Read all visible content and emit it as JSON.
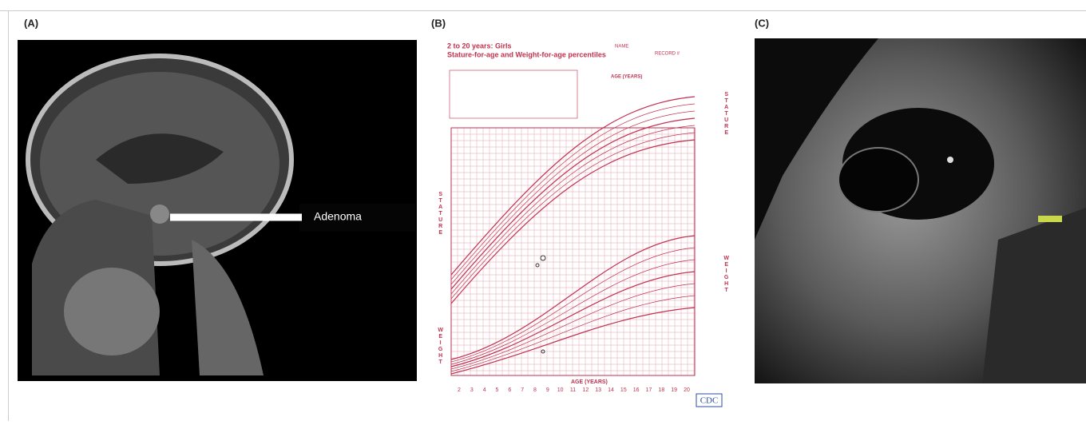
{
  "panels": [
    {
      "label": "(A)",
      "annotation": "Adenoma"
    },
    {
      "label": "(B)",
      "chart": {
        "title": "2 to 20 years: Girls",
        "subtitle": "Stature-for-age and Weight-for-age percentiles",
        "name_label": "NAME",
        "record_label": "RECORD #",
        "age_axis": "AGE (YEARS)",
        "stature": "STATURE",
        "weight": "WEIGHT",
        "ages": [
          "2",
          "3",
          "4",
          "5",
          "6",
          "7",
          "8",
          "9",
          "10",
          "11",
          "12",
          "13",
          "14",
          "15",
          "16",
          "17",
          "18",
          "19",
          "20"
        ],
        "logo": "CDC"
      }
    },
    {
      "label": "(C)"
    }
  ]
}
